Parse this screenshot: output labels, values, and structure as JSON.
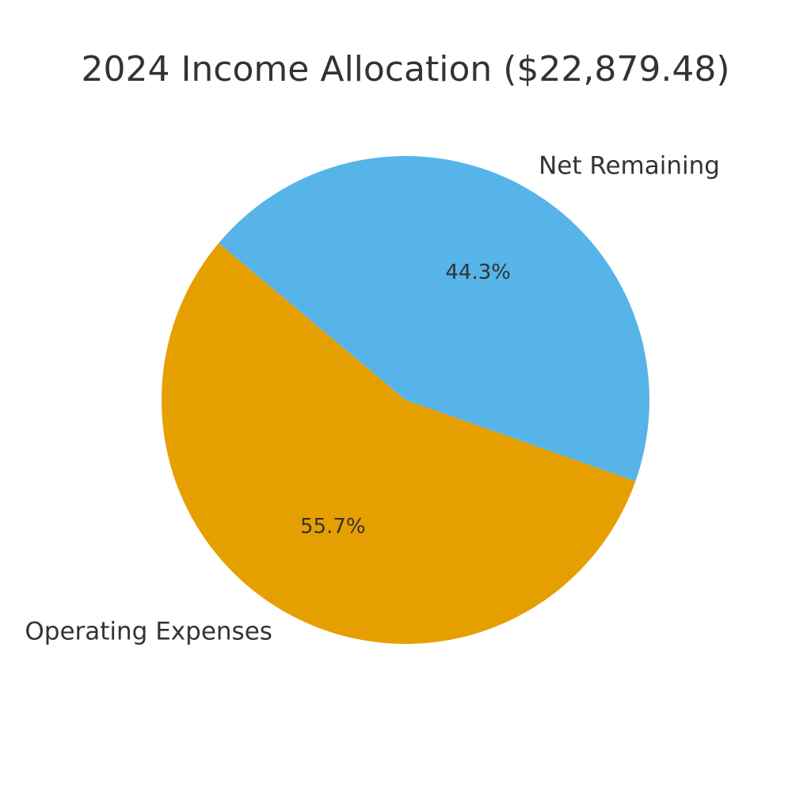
{
  "chart_data": {
    "type": "pie",
    "title": "2024 Income Allocation ($22,879.48)",
    "categories": [
      "Operating Expenses",
      "Net Remaining"
    ],
    "values": [
      55.7,
      44.3
    ],
    "value_labels": [
      "55.7%",
      "44.3%"
    ],
    "colors": [
      "#E69F00",
      "#56B4E9"
    ]
  }
}
